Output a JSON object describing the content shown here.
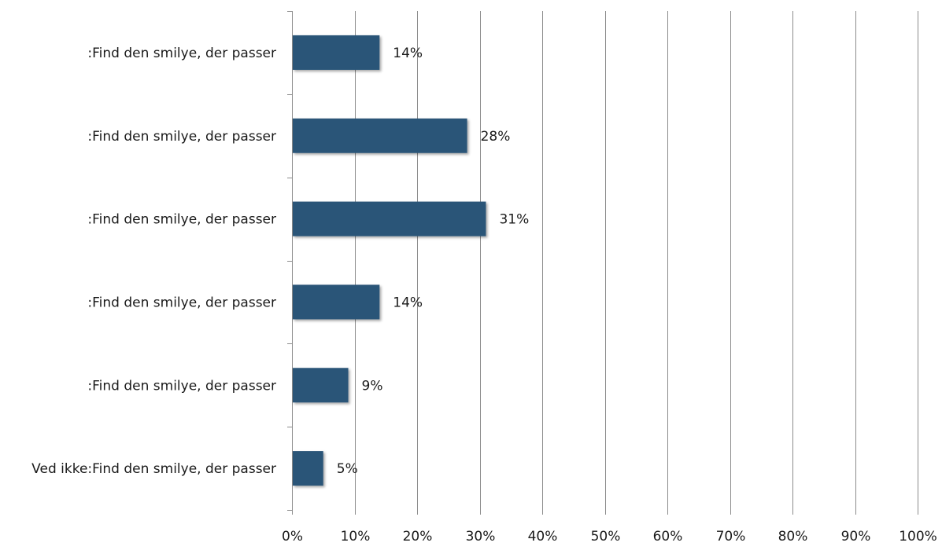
{
  "chart_data": {
    "type": "bar",
    "orientation": "horizontal",
    "categories": [
      ":Find den smilye, der passer",
      ":Find den smilye, der passer",
      ":Find den smilye, der passer",
      ":Find den smilye, der passer",
      ":Find den smilye, der passer",
      "Ved ikke:Find den smilye, der passer"
    ],
    "values": [
      14,
      28,
      31,
      14,
      9,
      5
    ],
    "data_labels": [
      "14%",
      "28%",
      "31%",
      "14%",
      "9%",
      "5%"
    ],
    "xlim": [
      0,
      100
    ],
    "x_ticks": [
      0,
      10,
      20,
      30,
      40,
      50,
      60,
      70,
      80,
      90,
      100
    ],
    "x_tick_labels": [
      "0%",
      "10%",
      "20%",
      "30%",
      "40%",
      "50%",
      "60%",
      "70%",
      "80%",
      "90%",
      "100%"
    ],
    "grid": "vertical",
    "legend": "none",
    "colors": {
      "bar": "#2a5478",
      "grid": "#8c8c8c",
      "axis": "#8c8c8c",
      "text": "#1a1a1a"
    }
  }
}
